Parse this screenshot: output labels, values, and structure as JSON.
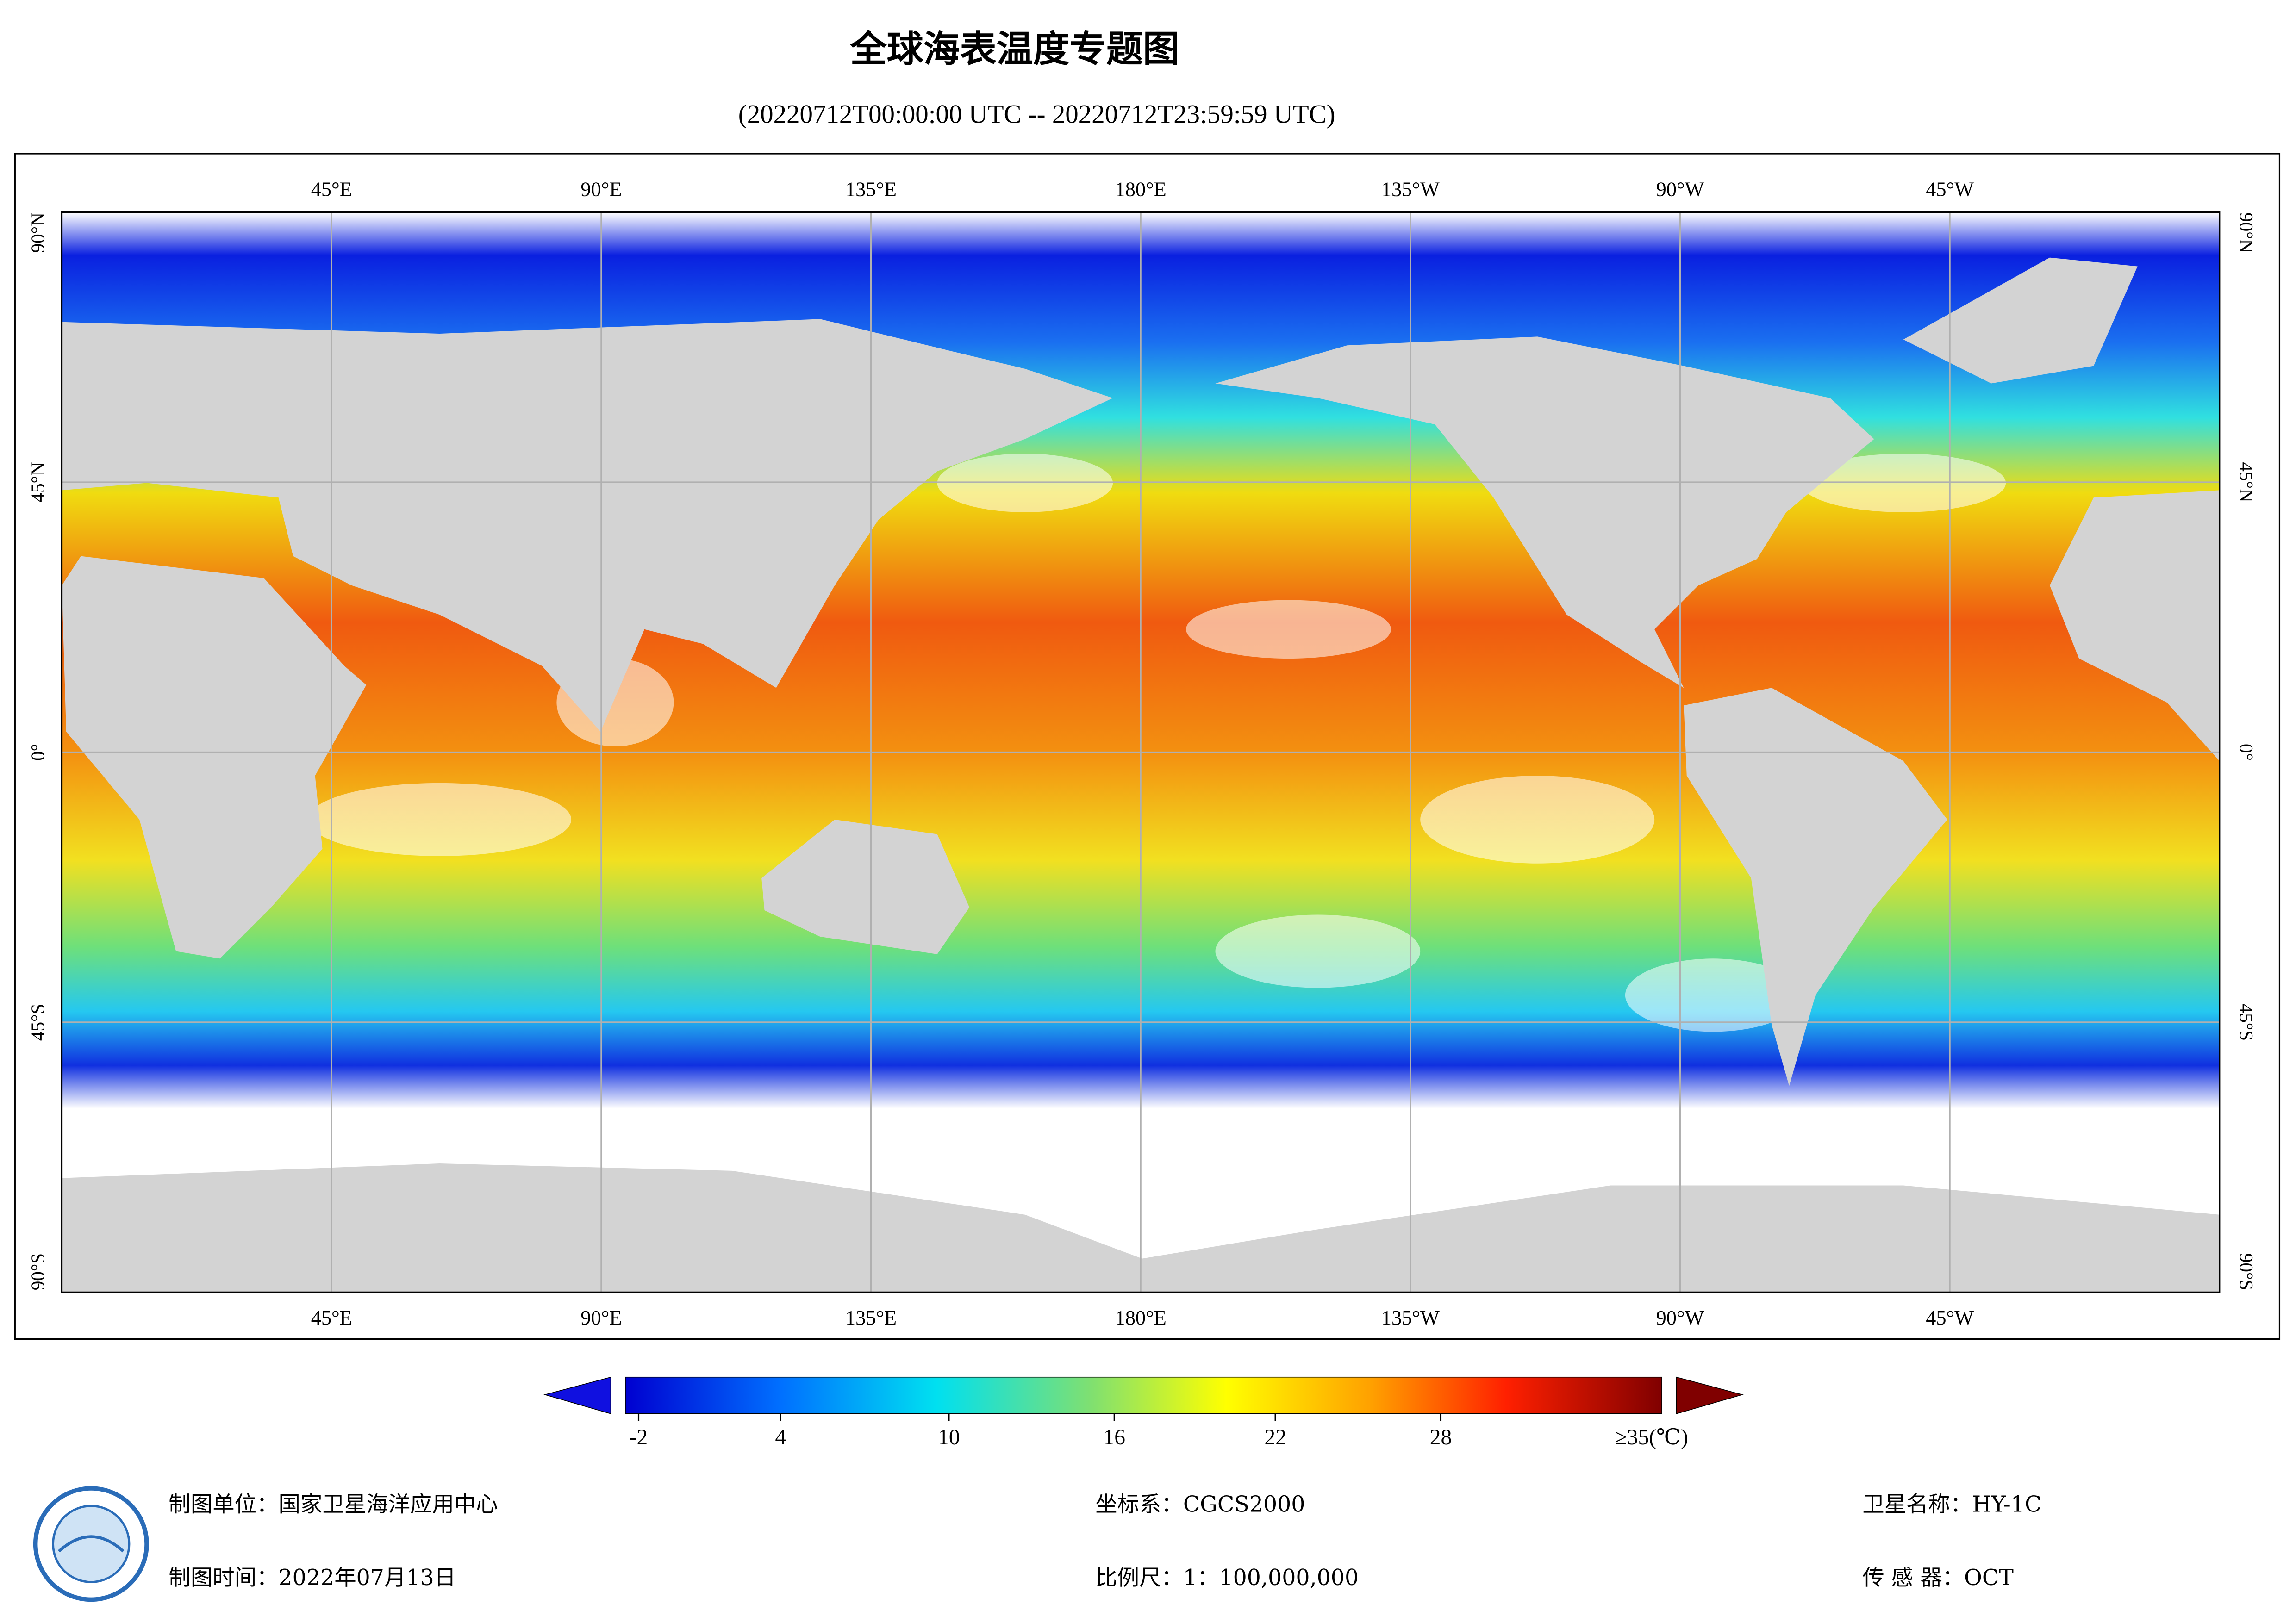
{
  "header": {
    "title": "全球海表温度专题图",
    "subtitle": "(20220712T00:00:00 UTC -- 20220712T23:59:59 UTC)"
  },
  "map": {
    "lon_labels": [
      "45°E",
      "90°E",
      "135°E",
      "180°E",
      "135°W",
      "90°W",
      "45°W"
    ],
    "lat_labels": [
      "90°N",
      "45°N",
      "0°",
      "45°S",
      "90°S"
    ]
  },
  "colorbar": {
    "ticks": [
      "-2",
      "4",
      "10",
      "16",
      "22",
      "28"
    ],
    "max_label": "≥35(℃)"
  },
  "footer": {
    "unit": "制图单位：国家卫星海洋应用中心",
    "date": "制图时间：2022年07月13日",
    "crs": "坐标系：CGCS2000",
    "scale": "比例尺：1：100,000,000",
    "satellite": "卫星名称：HY-1C",
    "sensor": "传 感 器：OCT"
  }
}
